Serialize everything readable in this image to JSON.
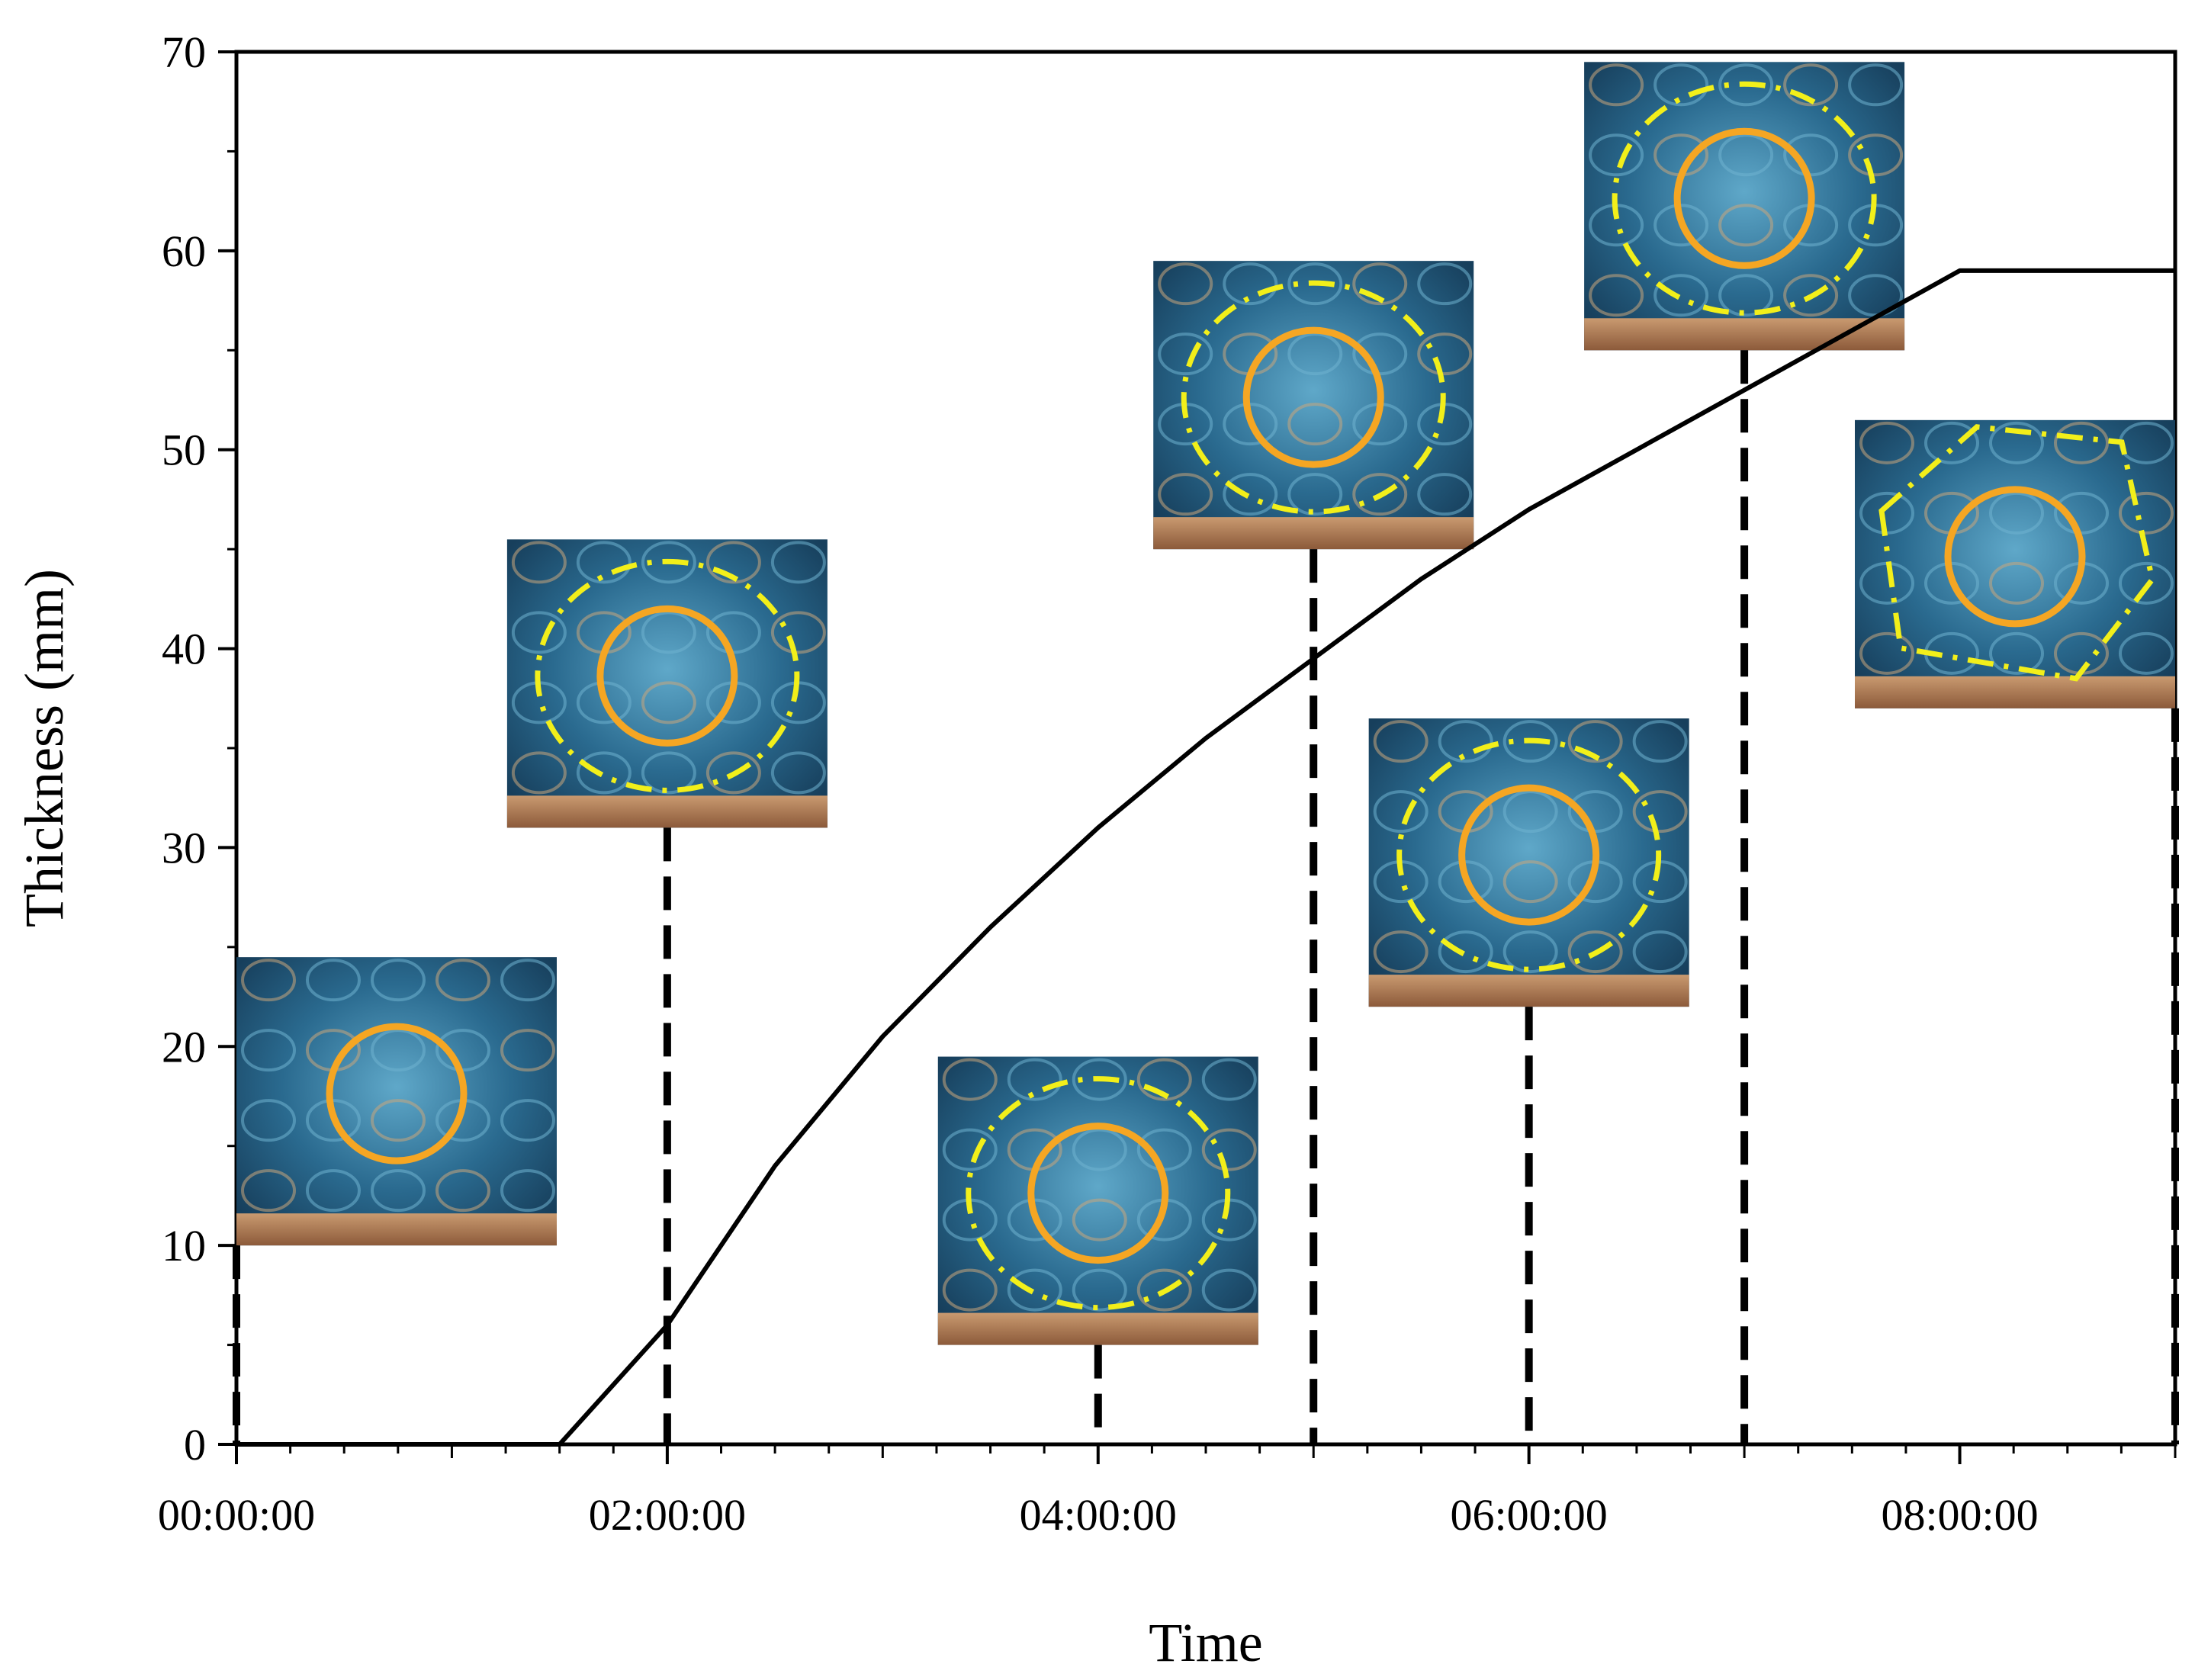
{
  "chart_data": {
    "type": "line",
    "title": "",
    "xlabel": "Time",
    "ylabel": "Thickness (mm)",
    "xlim": [
      0,
      9
    ],
    "ylim": [
      0,
      70
    ],
    "x_ticks": [
      0,
      2,
      4,
      6,
      8
    ],
    "x_tick_labels": [
      "00:00:00",
      "02:00:00",
      "04:00:00",
      "06:00:00",
      "08:00:00"
    ],
    "y_ticks": [
      0,
      10,
      20,
      30,
      40,
      50,
      60,
      70
    ],
    "y_tick_labels": [
      "0",
      "10",
      "20",
      "30",
      "40",
      "50",
      "60",
      "70"
    ],
    "grid": false,
    "legend": "none",
    "series": [
      {
        "x": [
          0,
          1.5,
          2.0,
          2.5,
          3.0,
          3.5,
          4.0,
          4.5,
          5.0,
          5.5,
          6.0,
          6.5,
          7.0,
          7.5,
          8.0,
          9.0
        ],
        "y": [
          0,
          0,
          6,
          14,
          20.5,
          26,
          31,
          35.5,
          39.5,
          43.5,
          47,
          50,
          53,
          56,
          59,
          59
        ],
        "color": "#000000"
      }
    ],
    "markers": [
      {
        "time": 0,
        "photo_bottom": 10,
        "inner_ring": "solid",
        "outer_ring": "none"
      },
      {
        "time": 2,
        "photo_bottom": 31,
        "inner_ring": "solid",
        "outer_ring": "dash-dot"
      },
      {
        "time": 4,
        "photo_bottom": 5,
        "inner_ring": "solid",
        "outer_ring": "dash-dot"
      },
      {
        "time": 5,
        "photo_bottom": 45,
        "inner_ring": "solid",
        "outer_ring": "dash-dot"
      },
      {
        "time": 6,
        "photo_bottom": 22,
        "inner_ring": "solid",
        "outer_ring": "dash-dot"
      },
      {
        "time": 7,
        "photo_bottom": 55,
        "inner_ring": "solid",
        "outer_ring": "dash-dot"
      },
      {
        "time": 9,
        "photo_bottom": 37,
        "inner_ring": "solid",
        "outer_ring": "polygon"
      }
    ],
    "colors": {
      "curve": "#000000",
      "inner_ring": "#f5a623",
      "outer_ring": "#f2ef1a",
      "photo_water": "#1f5a7e",
      "photo_floor": "#c9966c"
    }
  }
}
